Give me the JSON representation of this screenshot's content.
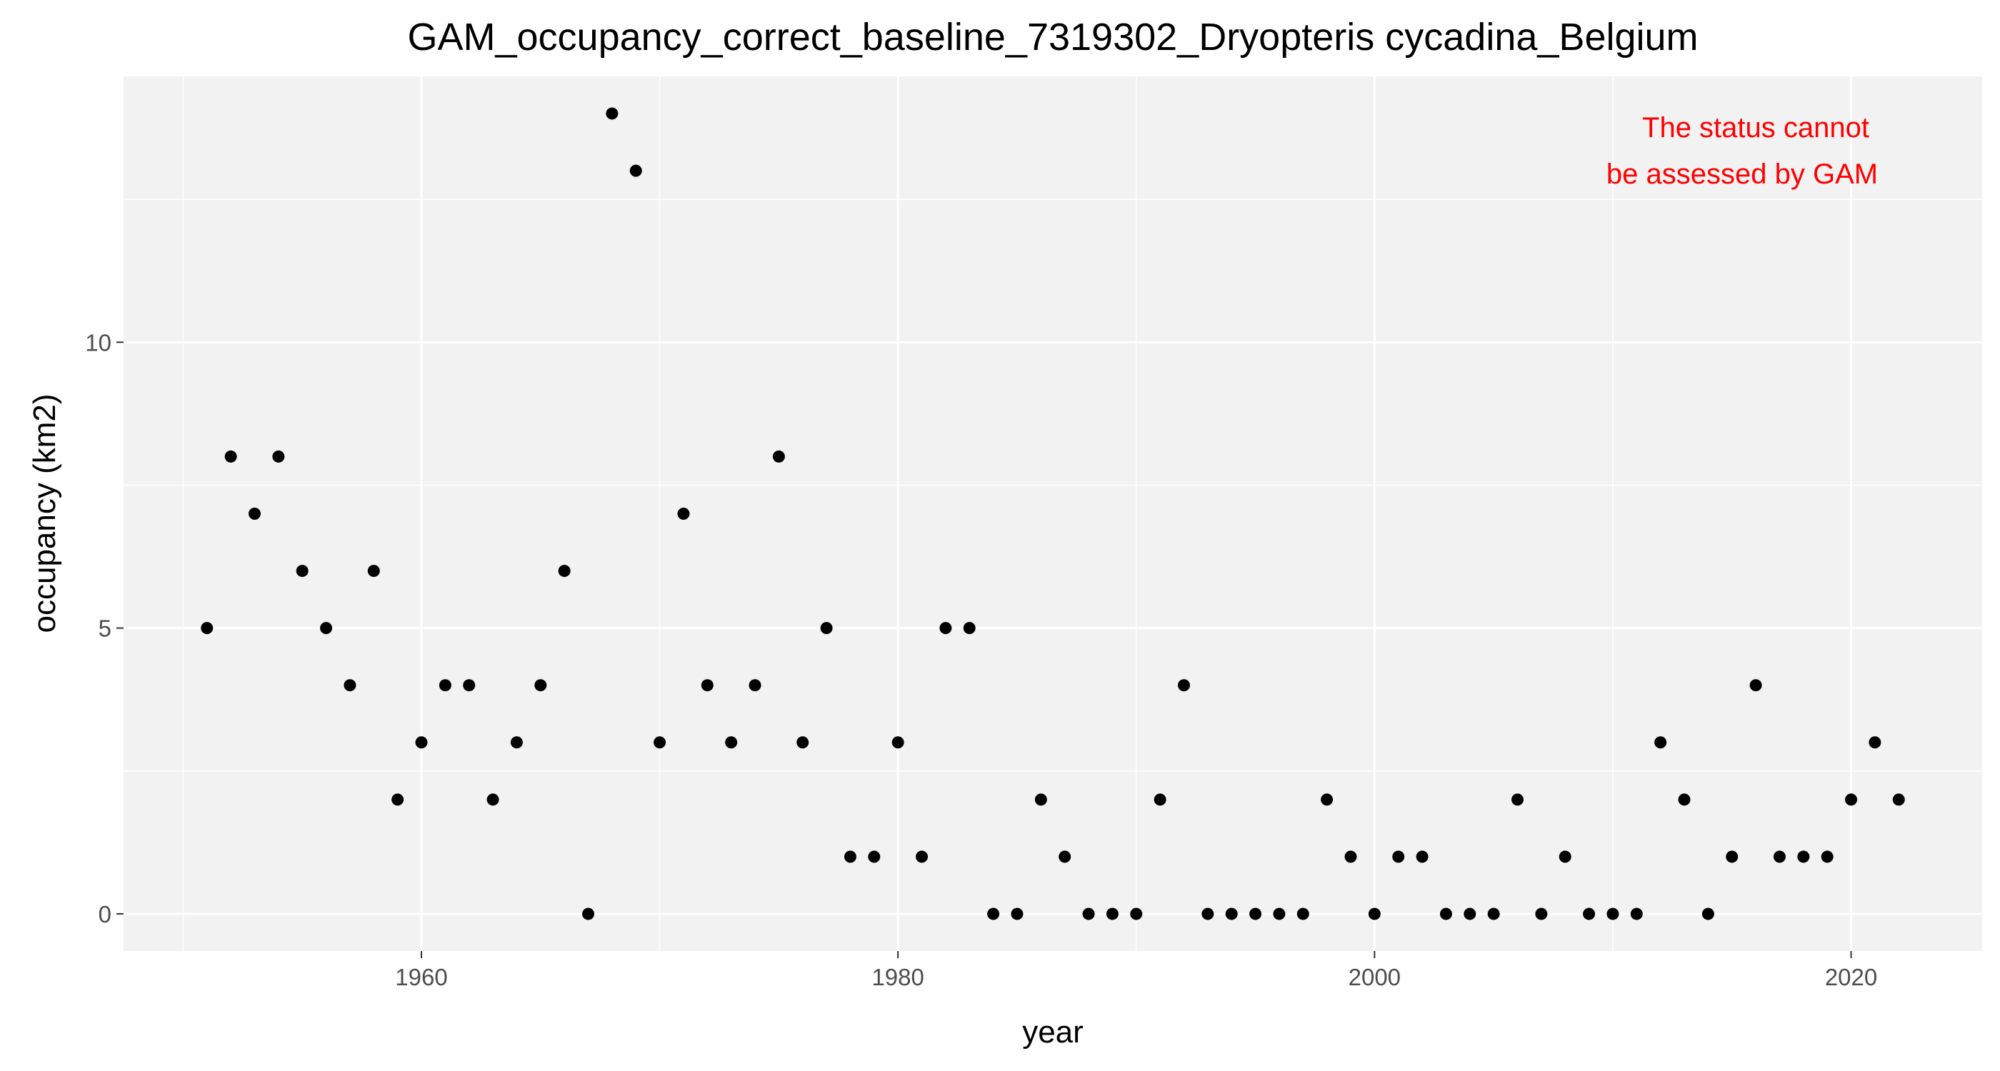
{
  "chart_data": {
    "type": "scatter",
    "title": "GAM_occupancy_correct_baseline_7319302_Dryopteris cycadina_Belgium",
    "xlabel": "year",
    "ylabel": "occupancy (km2)",
    "xlim": [
      1947.5,
      2025.5
    ],
    "ylim": [
      -0.65,
      14.65
    ],
    "x_ticks": [
      1960,
      1980,
      2000,
      2020
    ],
    "y_ticks": [
      0,
      5,
      10
    ],
    "grid": true,
    "legend": "none",
    "point_color": "#000000",
    "panel_background": "#f2f2f2",
    "annotation": {
      "lines": [
        "The status cannot",
        "be assessed by GAM"
      ],
      "color": "#ff0000",
      "position": "top-right"
    },
    "points": [
      {
        "x": 1951,
        "y": 5
      },
      {
        "x": 1952,
        "y": 8
      },
      {
        "x": 1953,
        "y": 7
      },
      {
        "x": 1954,
        "y": 8
      },
      {
        "x": 1955,
        "y": 6
      },
      {
        "x": 1956,
        "y": 5
      },
      {
        "x": 1957,
        "y": 4
      },
      {
        "x": 1958,
        "y": 6
      },
      {
        "x": 1959,
        "y": 2
      },
      {
        "x": 1960,
        "y": 3
      },
      {
        "x": 1961,
        "y": 4
      },
      {
        "x": 1962,
        "y": 4
      },
      {
        "x": 1963,
        "y": 2
      },
      {
        "x": 1964,
        "y": 3
      },
      {
        "x": 1965,
        "y": 4
      },
      {
        "x": 1966,
        "y": 6
      },
      {
        "x": 1967,
        "y": 0
      },
      {
        "x": 1968,
        "y": 14
      },
      {
        "x": 1969,
        "y": 13
      },
      {
        "x": 1970,
        "y": 3
      },
      {
        "x": 1971,
        "y": 7
      },
      {
        "x": 1972,
        "y": 4
      },
      {
        "x": 1973,
        "y": 3
      },
      {
        "x": 1974,
        "y": 4
      },
      {
        "x": 1975,
        "y": 8
      },
      {
        "x": 1976,
        "y": 3
      },
      {
        "x": 1977,
        "y": 5
      },
      {
        "x": 1978,
        "y": 1
      },
      {
        "x": 1979,
        "y": 1
      },
      {
        "x": 1980,
        "y": 3
      },
      {
        "x": 1981,
        "y": 1
      },
      {
        "x": 1982,
        "y": 5
      },
      {
        "x": 1983,
        "y": 5
      },
      {
        "x": 1984,
        "y": 0
      },
      {
        "x": 1985,
        "y": 0
      },
      {
        "x": 1986,
        "y": 2
      },
      {
        "x": 1987,
        "y": 1
      },
      {
        "x": 1988,
        "y": 0
      },
      {
        "x": 1989,
        "y": 0
      },
      {
        "x": 1990,
        "y": 0
      },
      {
        "x": 1991,
        "y": 2
      },
      {
        "x": 1992,
        "y": 4
      },
      {
        "x": 1993,
        "y": 0
      },
      {
        "x": 1994,
        "y": 0
      },
      {
        "x": 1995,
        "y": 0
      },
      {
        "x": 1996,
        "y": 0
      },
      {
        "x": 1997,
        "y": 0
      },
      {
        "x": 1998,
        "y": 2
      },
      {
        "x": 1999,
        "y": 1
      },
      {
        "x": 2000,
        "y": 0
      },
      {
        "x": 2001,
        "y": 1
      },
      {
        "x": 2002,
        "y": 1
      },
      {
        "x": 2003,
        "y": 0
      },
      {
        "x": 2004,
        "y": 0
      },
      {
        "x": 2005,
        "y": 0
      },
      {
        "x": 2006,
        "y": 2
      },
      {
        "x": 2007,
        "y": 0
      },
      {
        "x": 2008,
        "y": 1
      },
      {
        "x": 2009,
        "y": 0
      },
      {
        "x": 2010,
        "y": 0
      },
      {
        "x": 2011,
        "y": 0
      },
      {
        "x": 2012,
        "y": 3
      },
      {
        "x": 2013,
        "y": 2
      },
      {
        "x": 2014,
        "y": 0
      },
      {
        "x": 2015,
        "y": 1
      },
      {
        "x": 2016,
        "y": 4
      },
      {
        "x": 2017,
        "y": 1
      },
      {
        "x": 2018,
        "y": 1
      },
      {
        "x": 2019,
        "y": 1
      },
      {
        "x": 2020,
        "y": 2
      },
      {
        "x": 2021,
        "y": 3
      },
      {
        "x": 2022,
        "y": 2
      }
    ]
  }
}
